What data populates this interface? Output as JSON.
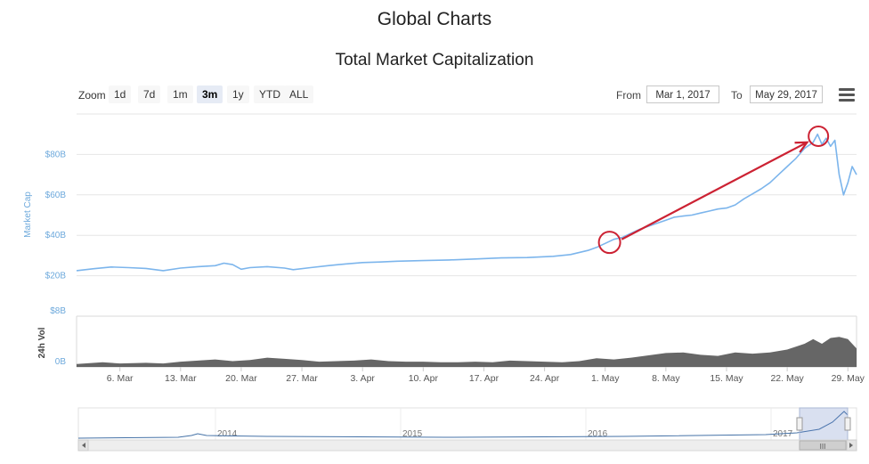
{
  "header": {
    "title": "Global Charts"
  },
  "toolbar": {
    "zoom_label": "Zoom",
    "zoom_buttons": [
      {
        "label": "1d",
        "active": false
      },
      {
        "label": "7d",
        "active": false
      },
      {
        "label": "1m",
        "active": false
      },
      {
        "label": "3m",
        "active": true
      },
      {
        "label": "1y",
        "active": false
      },
      {
        "label": "YTD",
        "active": false
      },
      {
        "label": "ALL",
        "active": false
      }
    ],
    "from_label": "From",
    "from_value": "Mar 1, 2017",
    "to_label": "To",
    "to_value": "May 29, 2017",
    "menu_icon": "hamburger-menu-icon"
  },
  "chart_data": {
    "type": "line",
    "title": "Total Market Capitalization",
    "ylabel": "Market Cap",
    "ylim": [
      0,
      100
    ],
    "y_ticks": [
      {
        "value": 20,
        "label": "$20B"
      },
      {
        "value": 40,
        "label": "$40B"
      },
      {
        "value": 60,
        "label": "$60B"
      },
      {
        "value": 80,
        "label": "$80B"
      }
    ],
    "x_ticks": [
      {
        "day": 5,
        "label": "6. Mar"
      },
      {
        "day": 12,
        "label": "13. Mar"
      },
      {
        "day": 19,
        "label": "20. Mar"
      },
      {
        "day": 26,
        "label": "27. Mar"
      },
      {
        "day": 33,
        "label": "3. Apr"
      },
      {
        "day": 40,
        "label": "10. Apr"
      },
      {
        "day": 47,
        "label": "17. Apr"
      },
      {
        "day": 54,
        "label": "24. Apr"
      },
      {
        "day": 61,
        "label": "1. May"
      },
      {
        "day": 68,
        "label": "8. May"
      },
      {
        "day": 75,
        "label": "15. May"
      },
      {
        "day": 82,
        "label": "22. May"
      },
      {
        "day": 89,
        "label": "29. May"
      }
    ],
    "x_range_days": [
      0,
      90
    ],
    "series": [
      {
        "color": "#7cb5ec",
        "points": [
          [
            0,
            22.5
          ],
          [
            2,
            23.5
          ],
          [
            4,
            24.3
          ],
          [
            6,
            24.0
          ],
          [
            8,
            23.6
          ],
          [
            10,
            22.5
          ],
          [
            12,
            23.8
          ],
          [
            14,
            24.5
          ],
          [
            16,
            25.0
          ],
          [
            17,
            26.2
          ],
          [
            18,
            25.5
          ],
          [
            19,
            23.2
          ],
          [
            20,
            24.0
          ],
          [
            22,
            24.5
          ],
          [
            24,
            23.8
          ],
          [
            25,
            23.0
          ],
          [
            27,
            24.0
          ],
          [
            29,
            25.0
          ],
          [
            31,
            25.8
          ],
          [
            33,
            26.5
          ],
          [
            35,
            26.8
          ],
          [
            37,
            27.2
          ],
          [
            40,
            27.5
          ],
          [
            43,
            27.8
          ],
          [
            46,
            28.3
          ],
          [
            49,
            28.8
          ],
          [
            52,
            29.0
          ],
          [
            55,
            29.6
          ],
          [
            57,
            30.5
          ],
          [
            59,
            32.5
          ],
          [
            60,
            34.0
          ],
          [
            61,
            36.0
          ],
          [
            62,
            38.0
          ],
          [
            63,
            39.0
          ],
          [
            64,
            41.0
          ],
          [
            65,
            43.0
          ],
          [
            66,
            44.5
          ],
          [
            67,
            46.0
          ],
          [
            68,
            47.5
          ],
          [
            69,
            49.0
          ],
          [
            70,
            49.5
          ],
          [
            71,
            50.0
          ],
          [
            72,
            51.0
          ],
          [
            73,
            52.0
          ],
          [
            74,
            53.0
          ],
          [
            75,
            53.5
          ],
          [
            76,
            55.0
          ],
          [
            77,
            58.0
          ],
          [
            78,
            60.5
          ],
          [
            79,
            63.0
          ],
          [
            80,
            66.0
          ],
          [
            81,
            70.0
          ],
          [
            82,
            74.0
          ],
          [
            83,
            78.0
          ],
          [
            84,
            83.0
          ],
          [
            85,
            86.0
          ],
          [
            85.5,
            90.0
          ],
          [
            86,
            85.0
          ],
          [
            86.5,
            88.0
          ],
          [
            87,
            84.0
          ],
          [
            87.5,
            87.0
          ],
          [
            88,
            70.0
          ],
          [
            88.5,
            60.0
          ],
          [
            89,
            66.0
          ],
          [
            89.5,
            74.0
          ],
          [
            90,
            70.0
          ]
        ]
      }
    ],
    "volume": {
      "ylabel": "24h Vol",
      "y_ticks": [
        {
          "value": 0,
          "label": "0B"
        },
        {
          "value": 8,
          "label": "$8B"
        }
      ],
      "points": [
        [
          0,
          0.5
        ],
        [
          3,
          0.8
        ],
        [
          5,
          0.6
        ],
        [
          8,
          0.7
        ],
        [
          10,
          0.6
        ],
        [
          12,
          0.9
        ],
        [
          14,
          1.1
        ],
        [
          16,
          1.3
        ],
        [
          18,
          1.0
        ],
        [
          20,
          1.2
        ],
        [
          22,
          1.6
        ],
        [
          24,
          1.4
        ],
        [
          26,
          1.2
        ],
        [
          28,
          0.9
        ],
        [
          30,
          1.0
        ],
        [
          32,
          1.1
        ],
        [
          34,
          1.3
        ],
        [
          36,
          1.0
        ],
        [
          38,
          0.9
        ],
        [
          40,
          0.9
        ],
        [
          42,
          0.8
        ],
        [
          44,
          0.8
        ],
        [
          46,
          0.9
        ],
        [
          48,
          0.8
        ],
        [
          50,
          1.1
        ],
        [
          52,
          1.0
        ],
        [
          54,
          0.9
        ],
        [
          56,
          0.8
        ],
        [
          58,
          1.0
        ],
        [
          60,
          1.5
        ],
        [
          62,
          1.3
        ],
        [
          64,
          1.6
        ],
        [
          66,
          2.0
        ],
        [
          68,
          2.4
        ],
        [
          70,
          2.5
        ],
        [
          72,
          2.1
        ],
        [
          74,
          1.9
        ],
        [
          76,
          2.5
        ],
        [
          78,
          2.3
        ],
        [
          80,
          2.5
        ],
        [
          82,
          3.0
        ],
        [
          84,
          4.0
        ],
        [
          85,
          4.8
        ],
        [
          86,
          4.0
        ],
        [
          87,
          5.0
        ],
        [
          88,
          5.2
        ],
        [
          89,
          4.8
        ],
        [
          90,
          3.2
        ]
      ]
    }
  },
  "navigator": {
    "year_labels": [
      "2014",
      "2015",
      "2016",
      "2017"
    ],
    "scrollbar_grip": "III"
  },
  "annotations": {
    "color": "#cc2233"
  }
}
